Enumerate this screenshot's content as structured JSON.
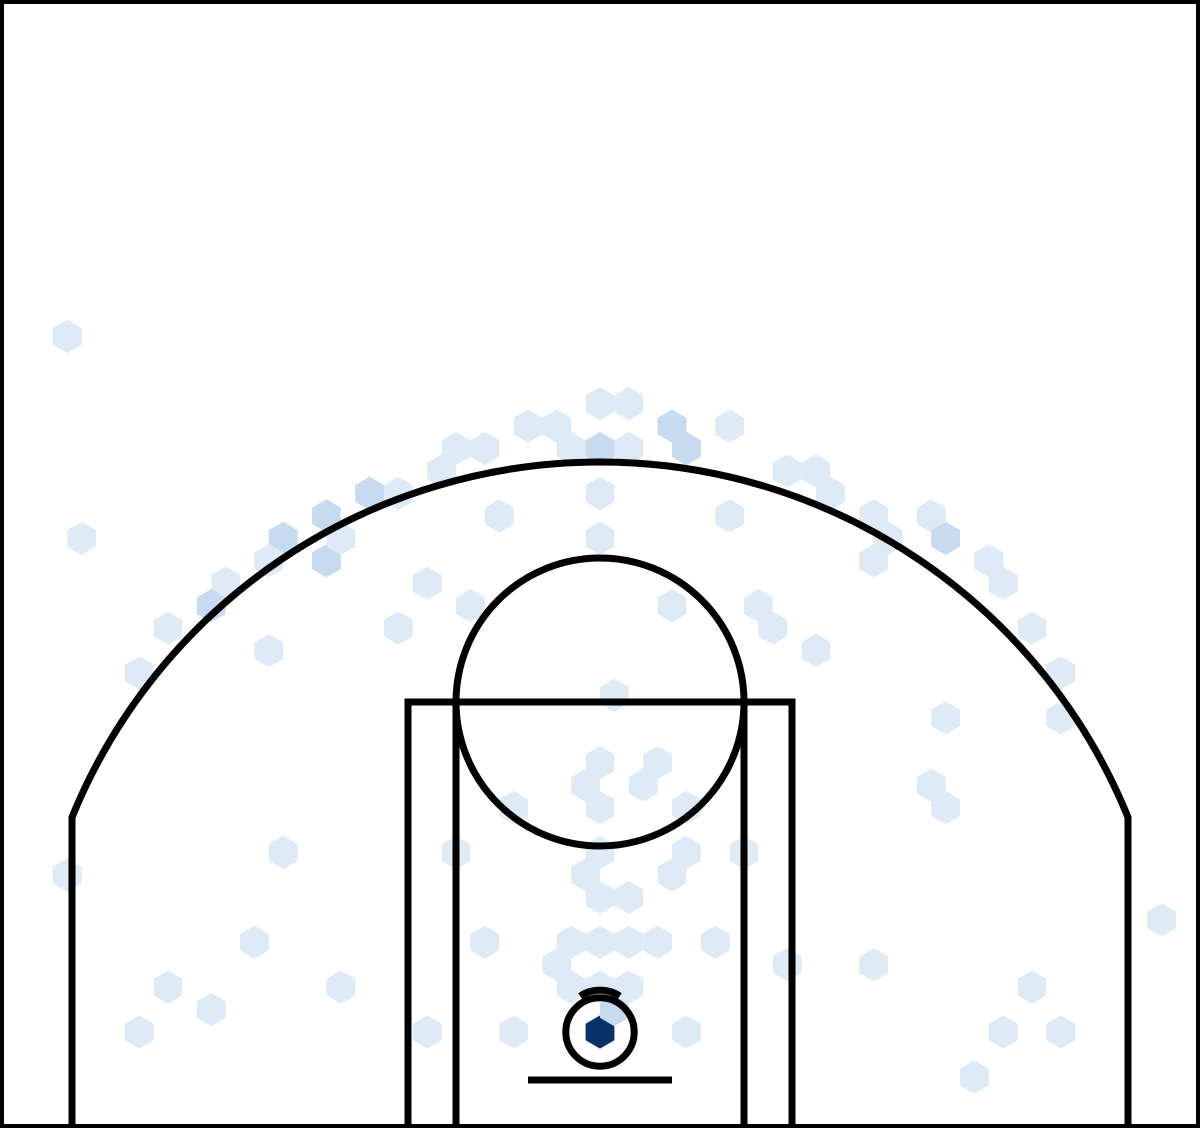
{
  "chart_data": {
    "type": "heatmap",
    "subtype": "hexbin-shot-chart",
    "title": "",
    "xlabel": "",
    "ylabel": "",
    "colormap": "Blues",
    "colors": {
      "background": "#ffffff",
      "court_lines": "#000000",
      "scale": [
        "#f7fbff",
        "#deebf7",
        "#c6dbef",
        "#9ecae1",
        "#6baed6",
        "#3182bd",
        "#08306b"
      ]
    },
    "court": {
      "units": "feet",
      "x_range": [
        -25,
        25
      ],
      "y_range": [
        -4,
        43
      ],
      "hoop": [
        0,
        0
      ],
      "hoop_radius": 0.75,
      "backboard_y": -2,
      "backboard_half_width": 3,
      "lane_outer_half_width": 8,
      "lane_inner_half_width": 6,
      "free_throw_line_y": 13.75,
      "free_throw_circle_radius": 6,
      "three_point_radius": 23.75,
      "corner_three_x": 22,
      "corner_three_top_y": 8.5,
      "restricted_area_radius": 1.5
    },
    "hex_grid": {
      "dx": 1.2,
      "row_height": 0.935
    },
    "bins": [
      {
        "col": 0,
        "row": 0,
        "count": 60
      },
      {
        "col": 0,
        "row": 1,
        "count": 4
      },
      {
        "col": 0,
        "row": 2,
        "count": 1
      },
      {
        "col": 1,
        "row": 2,
        "count": 1
      },
      {
        "col": -1,
        "row": 2,
        "count": 1
      },
      {
        "col": 0,
        "row": 4,
        "count": 1
      },
      {
        "col": 1,
        "row": 4,
        "count": 1
      },
      {
        "col": -1,
        "row": 4,
        "count": 1
      },
      {
        "col": 2,
        "row": 4,
        "count": 1
      },
      {
        "col": -2,
        "row": 3,
        "count": 1
      },
      {
        "col": 0,
        "row": 6,
        "count": 1
      },
      {
        "col": 1,
        "row": 6,
        "count": 1
      },
      {
        "col": 2,
        "row": 7,
        "count": 1
      },
      {
        "col": -1,
        "row": 7,
        "count": 1
      },
      {
        "col": 0,
        "row": 8,
        "count": 1
      },
      {
        "col": 3,
        "row": 8,
        "count": 1
      },
      {
        "col": 0,
        "row": 10,
        "count": 2
      },
      {
        "col": 0,
        "row": 12,
        "count": 2
      },
      {
        "col": 1,
        "row": 11,
        "count": 1
      },
      {
        "col": -1,
        "row": 11,
        "count": 1
      },
      {
        "col": 3,
        "row": 10,
        "count": 1
      },
      {
        "col": -3,
        "row": 10,
        "count": 1
      },
      {
        "col": 2,
        "row": 12,
        "count": 1
      },
      {
        "col": 0,
        "row": 15,
        "count": 1
      },
      {
        "col": 2,
        "row": 19,
        "count": 1
      },
      {
        "col": 0,
        "row": 22,
        "count": 1
      },
      {
        "col": 0,
        "row": 24,
        "count": 2
      },
      {
        "col": 0,
        "row": 26,
        "count": 3
      },
      {
        "col": 1,
        "row": 26,
        "count": 1
      },
      {
        "col": -1,
        "row": 26,
        "count": 1
      },
      {
        "col": 2,
        "row": 27,
        "count": 3
      },
      {
        "col": 3,
        "row": 26,
        "count": 4
      },
      {
        "col": -2,
        "row": 27,
        "count": 1
      },
      {
        "col": -3,
        "row": 27,
        "count": 1
      },
      {
        "col": 4,
        "row": 27,
        "count": 1
      },
      {
        "col": -4,
        "row": 26,
        "count": 1
      },
      {
        "col": 1,
        "row": 28,
        "count": 2
      },
      {
        "col": 0,
        "row": 28,
        "count": 1
      },
      {
        "col": 6,
        "row": 25,
        "count": 2
      },
      {
        "col": -6,
        "row": 25,
        "count": 2
      },
      {
        "col": -5,
        "row": 26,
        "count": 1
      },
      {
        "col": 7,
        "row": 25,
        "count": 1
      },
      {
        "col": 8,
        "row": 24,
        "count": 2
      },
      {
        "col": -8,
        "row": 24,
        "count": 3
      },
      {
        "col": -7,
        "row": 24,
        "count": 2
      },
      {
        "col": 9,
        "row": 23,
        "count": 1
      },
      {
        "col": -10,
        "row": 23,
        "count": 4
      },
      {
        "col": 11,
        "row": 23,
        "count": 2
      },
      {
        "col": -11,
        "row": 22,
        "count": 3
      },
      {
        "col": 12,
        "row": 22,
        "count": 6
      },
      {
        "col": -12,
        "row": 21,
        "count": 2
      },
      {
        "col": 13,
        "row": 21,
        "count": 1
      },
      {
        "col": -13,
        "row": 20,
        "count": 2
      },
      {
        "col": 14,
        "row": 20,
        "count": 1
      },
      {
        "col": -14,
        "row": 19,
        "count": 3
      },
      {
        "col": 15,
        "row": 18,
        "count": 1
      },
      {
        "col": -15,
        "row": 18,
        "count": 2
      },
      {
        "col": 16,
        "row": 16,
        "count": 1
      },
      {
        "col": -16,
        "row": 16,
        "count": 1
      },
      {
        "col": 16,
        "row": 14,
        "count": 1
      },
      {
        "col": -10,
        "row": 21,
        "count": 5
      },
      {
        "col": -9,
        "row": 22,
        "count": 1
      },
      {
        "col": 9,
        "row": 21,
        "count": 1
      },
      {
        "col": 10,
        "row": 22,
        "count": 1
      },
      {
        "col": -6,
        "row": 20,
        "count": 1
      },
      {
        "col": -5,
        "row": 19,
        "count": 2
      },
      {
        "col": 5,
        "row": 19,
        "count": 2
      },
      {
        "col": 6,
        "row": 18,
        "count": 2
      },
      {
        "col": -7,
        "row": 18,
        "count": 1
      },
      {
        "col": 7,
        "row": 17,
        "count": 1
      },
      {
        "col": 4,
        "row": 23,
        "count": 1
      },
      {
        "col": -4,
        "row": 23,
        "count": 1
      },
      {
        "col": -12,
        "row": 17,
        "count": 1
      },
      {
        "col": 12,
        "row": 14,
        "count": 1
      },
      {
        "col": 11,
        "row": 11,
        "count": 1
      },
      {
        "col": -11,
        "row": 8,
        "count": 1
      },
      {
        "col": 9,
        "row": 3,
        "count": 1
      },
      {
        "col": -9,
        "row": 2,
        "count": 1
      },
      {
        "col": 14,
        "row": 0,
        "count": 1
      },
      {
        "col": -14,
        "row": 1,
        "count": 1
      },
      {
        "col": 13,
        "row": -2,
        "count": 1
      },
      {
        "col": 15,
        "row": 2,
        "count": 1
      },
      {
        "col": -15,
        "row": 2,
        "count": 1
      },
      {
        "col": -16,
        "row": 0,
        "count": 1
      },
      {
        "col": 16,
        "row": 0,
        "count": 1
      },
      {
        "col": -6,
        "row": 0,
        "count": 1
      },
      {
        "col": 3,
        "row": 0,
        "count": 1
      },
      {
        "col": -3,
        "row": 0,
        "count": 1
      },
      {
        "col": -4,
        "row": 4,
        "count": 1
      },
      {
        "col": 4,
        "row": 4,
        "count": 1
      },
      {
        "col": 5,
        "row": 8,
        "count": 1
      },
      {
        "col": -5,
        "row": 8,
        "count": 1
      },
      {
        "col": -19,
        "row": 7,
        "count": 1
      },
      {
        "col": 19,
        "row": 5,
        "count": 1
      },
      {
        "col": -18,
        "row": 22,
        "count": 1
      },
      {
        "col": -19,
        "row": 31,
        "count": 1
      },
      {
        "col": 12,
        "row": 10,
        "count": 1
      },
      {
        "col": -12,
        "row": 4,
        "count": 1
      },
      {
        "col": 6,
        "row": 3,
        "count": 1
      }
    ]
  }
}
